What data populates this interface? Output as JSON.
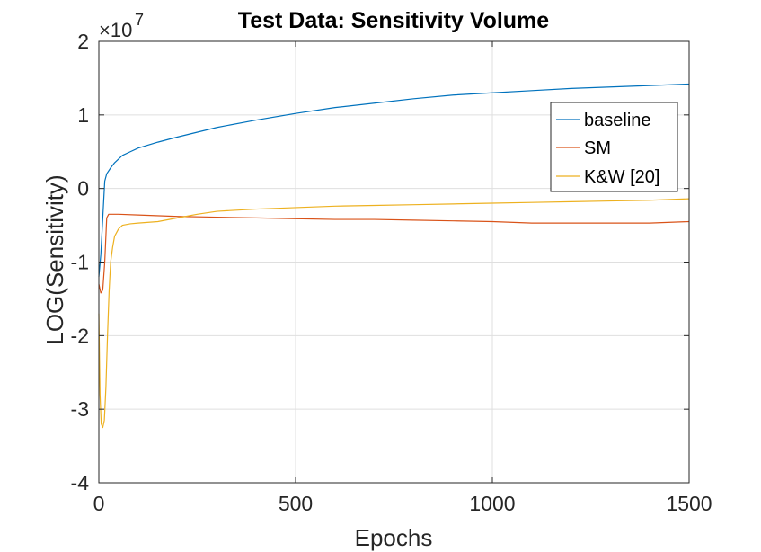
{
  "chart_data": {
    "type": "line",
    "title": "Test Data: Sensitivity Volume",
    "xlabel": "Epochs",
    "ylabel": "LOG(Sensitivity)",
    "y_multiplier_base": "×10",
    "y_multiplier_exp": "7",
    "xlim": [
      0,
      1500
    ],
    "ylim": [
      -4,
      2
    ],
    "x_ticks": [
      0,
      500,
      1000,
      1500
    ],
    "x_tick_labels": [
      "0",
      "500",
      "1000",
      "1500"
    ],
    "y_ticks": [
      -4,
      -3,
      -2,
      -1,
      0,
      1,
      2
    ],
    "y_tick_labels": [
      "-4",
      "-3",
      "-2",
      "-1",
      "0",
      "1",
      "2"
    ],
    "grid": true,
    "legend_position": "top-right",
    "colors": {
      "baseline": "#0072BD",
      "SM": "#D95319",
      "KW": "#EDB120"
    },
    "series": [
      {
        "name": "baseline",
        "color": "#0072BD",
        "x": [
          0,
          5,
          10,
          15,
          20,
          30,
          40,
          60,
          80,
          100,
          150,
          200,
          300,
          400,
          500,
          600,
          700,
          800,
          900,
          1000,
          1100,
          1200,
          1300,
          1400,
          1500
        ],
        "y": [
          -1.2,
          -0.9,
          -0.4,
          0.1,
          0.2,
          0.28,
          0.35,
          0.45,
          0.5,
          0.55,
          0.63,
          0.7,
          0.83,
          0.93,
          1.02,
          1.1,
          1.16,
          1.22,
          1.27,
          1.3,
          1.33,
          1.36,
          1.38,
          1.4,
          1.42
        ]
      },
      {
        "name": "SM",
        "color": "#D95319",
        "x": [
          0,
          5,
          10,
          15,
          20,
          25,
          30,
          50,
          100,
          200,
          300,
          400,
          500,
          600,
          700,
          800,
          900,
          1000,
          1100,
          1200,
          1300,
          1400,
          1500
        ],
        "y": [
          -1.3,
          -1.42,
          -1.38,
          -1.0,
          -0.4,
          -0.35,
          -0.35,
          -0.35,
          -0.36,
          -0.38,
          -0.39,
          -0.4,
          -0.41,
          -0.42,
          -0.42,
          -0.43,
          -0.44,
          -0.45,
          -0.47,
          -0.47,
          -0.47,
          -0.47,
          -0.45
        ]
      },
      {
        "name": "K&W [20]",
        "color": "#EDB120",
        "x": [
          0,
          3,
          6,
          10,
          14,
          18,
          22,
          26,
          30,
          35,
          40,
          50,
          60,
          80,
          100,
          150,
          200,
          250,
          300,
          400,
          500,
          600,
          700,
          800,
          900,
          1000,
          1100,
          1200,
          1300,
          1400,
          1500
        ],
        "y": [
          -1.7,
          -2.8,
          -3.2,
          -3.25,
          -3.15,
          -2.7,
          -2.0,
          -1.4,
          -1.0,
          -0.8,
          -0.65,
          -0.55,
          -0.5,
          -0.48,
          -0.47,
          -0.45,
          -0.4,
          -0.35,
          -0.31,
          -0.28,
          -0.26,
          -0.24,
          -0.23,
          -0.22,
          -0.21,
          -0.2,
          -0.19,
          -0.18,
          -0.17,
          -0.16,
          -0.14
        ]
      }
    ]
  }
}
